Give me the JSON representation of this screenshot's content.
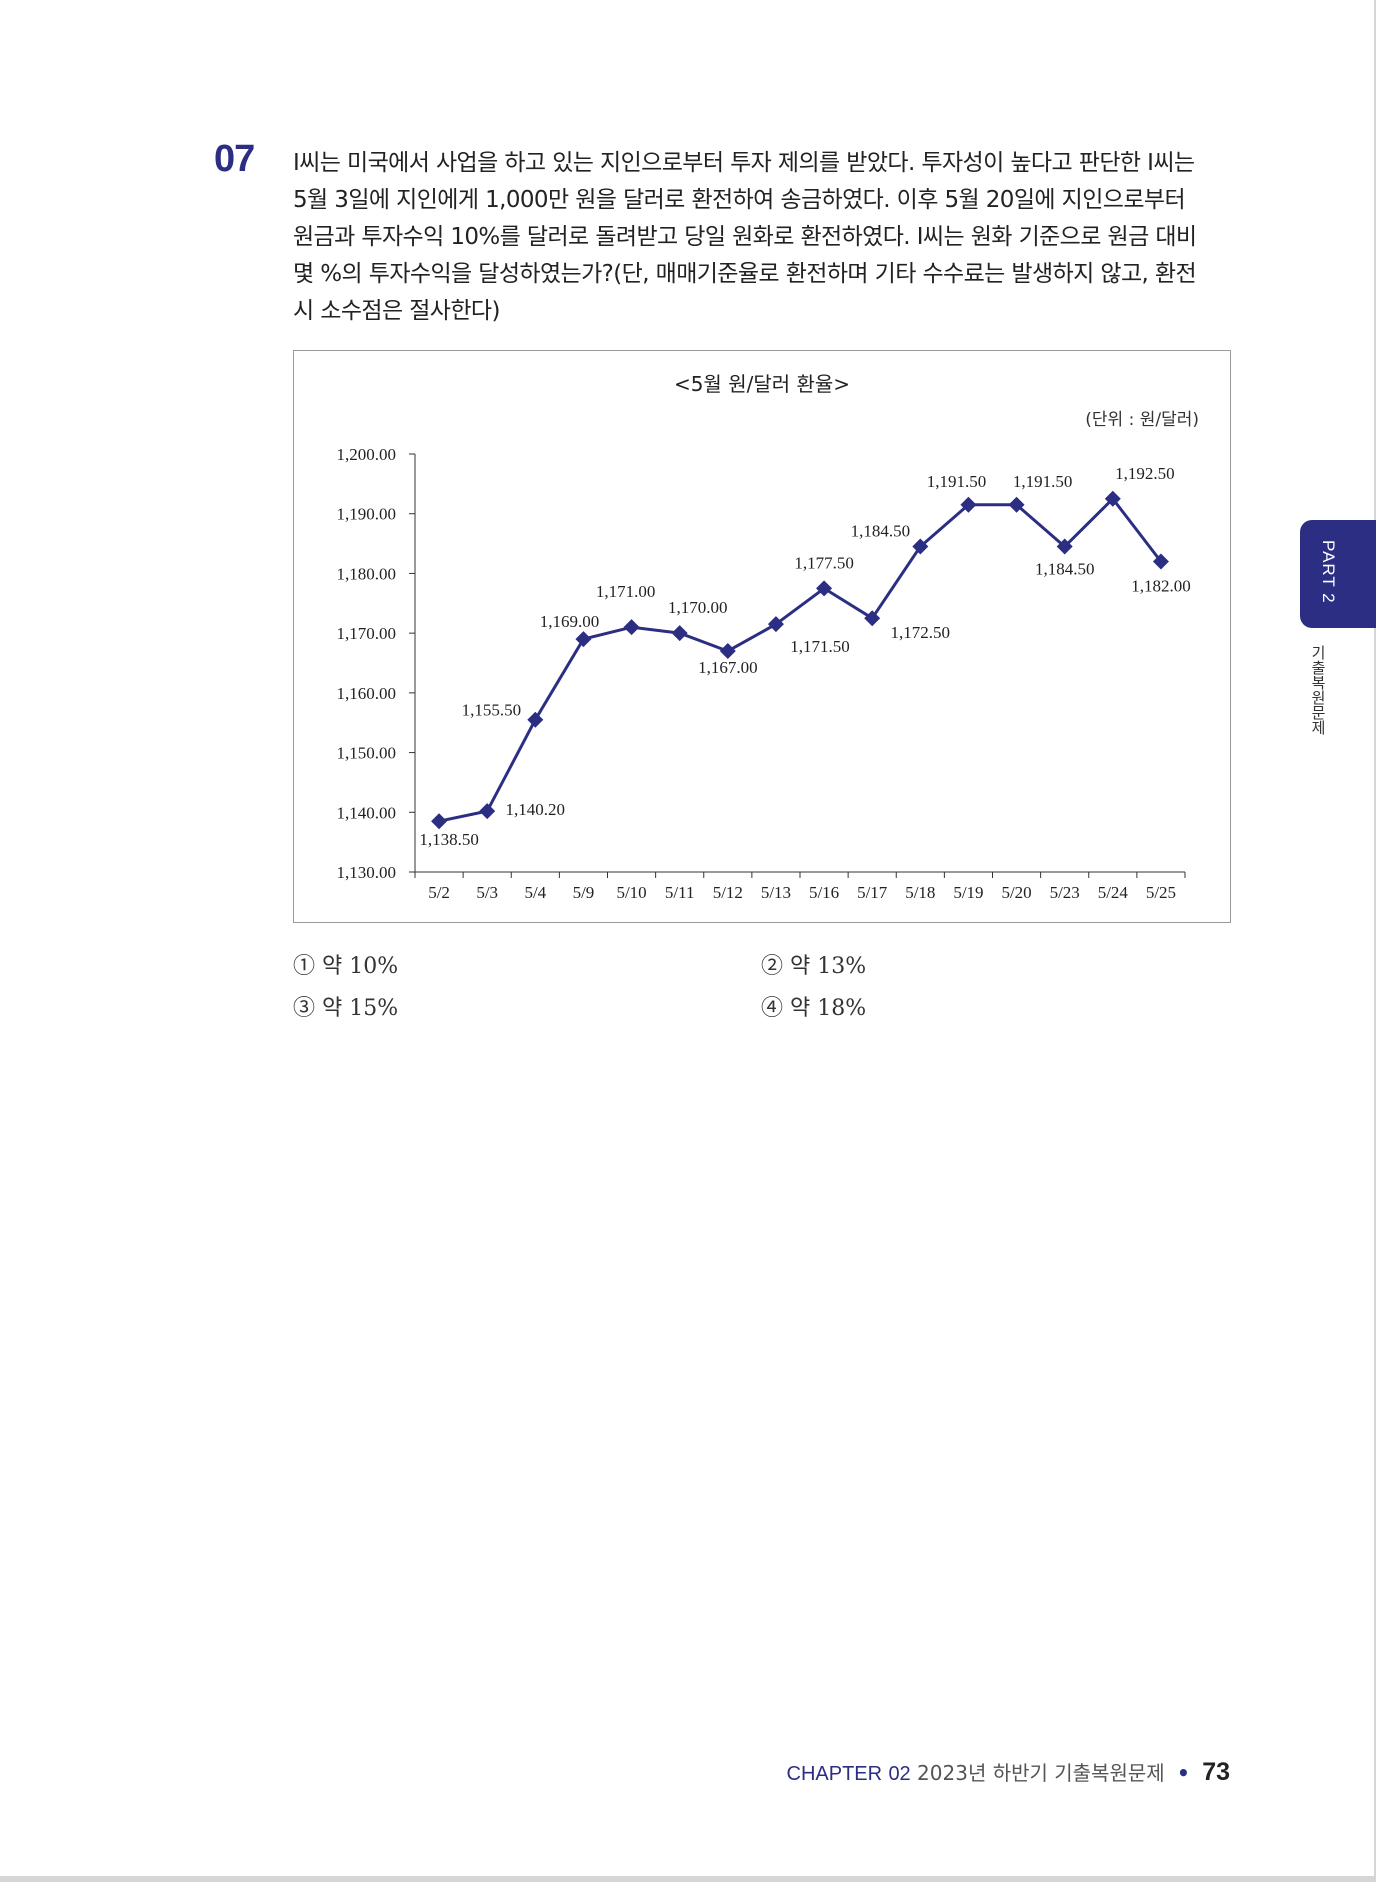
{
  "question": {
    "number": "07",
    "lines": [
      "I씨는 미국에서 사업을 하고 있는 지인으로부터 투자 제의를 받았다. 투자성이 높다고 판단한 I씨는",
      "5월 3일에 지인에게 1,000만 원을 달러로 환전하여 송금하였다. 이후 5월 20일에 지인으로부터",
      "원금과 투자수익 10%를 달러로 돌려받고 당일 원화로 환전하였다. I씨는 원화 기준으로 원금 대비",
      "몇 %의 투자수익을 달성하였는가?(단, 매매기준율로 환전하며 기타 수수료는 발생하지 않고, 환전",
      "시 소수점은 절사한다)"
    ]
  },
  "chart_data": {
    "type": "line",
    "title": "<5월 원/달러 환율>",
    "unit": "(단위 : 원/달러)",
    "categories": [
      "5/2",
      "5/3",
      "5/4",
      "5/9",
      "5/10",
      "5/11",
      "5/12",
      "5/13",
      "5/16",
      "5/17",
      "5/18",
      "5/19",
      "5/20",
      "5/23",
      "5/24",
      "5/25"
    ],
    "series": [
      {
        "values": [
          1138.5,
          1140.2,
          1155.5,
          1169.0,
          1171.0,
          1170.0,
          1167.0,
          1171.5,
          1177.5,
          1172.5,
          1184.5,
          1191.5,
          1191.5,
          1184.5,
          1192.5,
          1182.0
        ],
        "labels": [
          "1,138.50",
          "1,140.20",
          "1,155.50",
          "1,169.00",
          "1,171.00",
          "1,170.00",
          "1,167.00",
          "1,171.50",
          "1,177.50",
          "1,172.50",
          "1,184.50",
          "1,191.50",
          "1,191.50",
          "1,184.50",
          "1,192.50",
          "1,182.00"
        ]
      }
    ],
    "yticks": [
      "1,130.00",
      "1,140.00",
      "1,150.00",
      "1,160.00",
      "1,170.00",
      "1,180.00",
      "1,190.00",
      "1,200.00"
    ],
    "ylim": [
      1130,
      1200
    ],
    "grid": false,
    "legend": "none",
    "line_color": "#2b2e83"
  },
  "options": [
    {
      "num": "①",
      "text": "약 10%"
    },
    {
      "num": "②",
      "text": "약 13%"
    },
    {
      "num": "③",
      "text": "약 15%"
    },
    {
      "num": "④",
      "text": "약 18%"
    }
  ],
  "side_tab": {
    "part": "PART 2",
    "section": "기출복원문제"
  },
  "footer": {
    "chapter_label": "CHAPTER",
    "chapter_num": "02",
    "title": "2023년 하반기 기출복원문제",
    "page": "73"
  }
}
